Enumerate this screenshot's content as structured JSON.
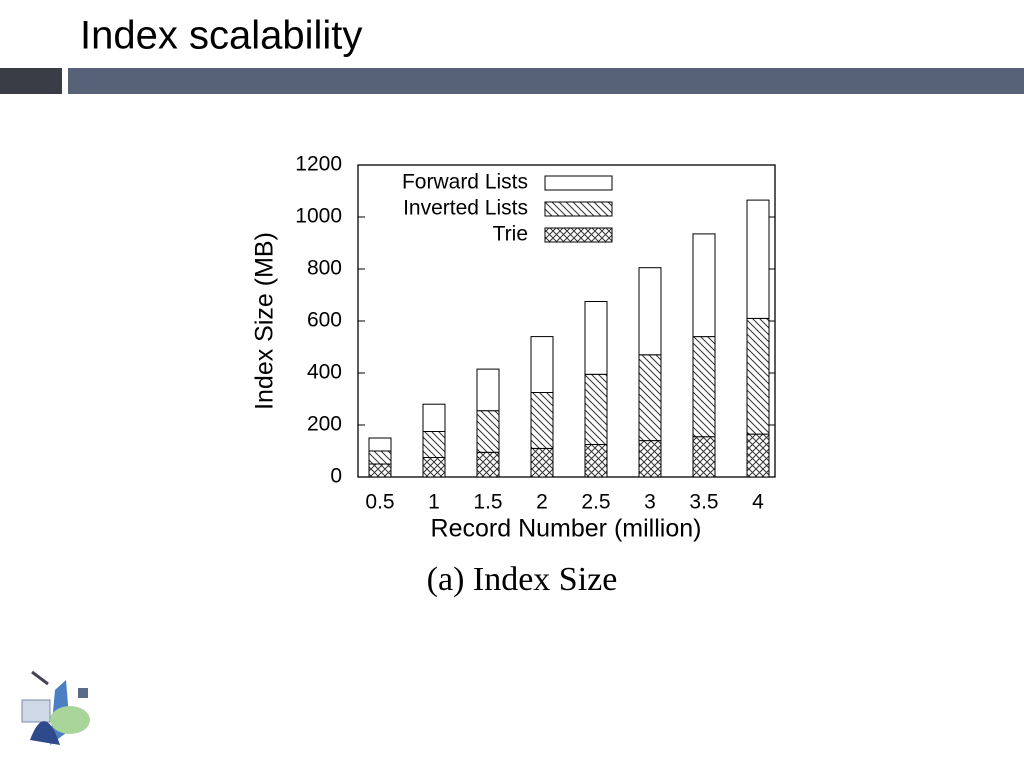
{
  "slide_title": "Index scalability",
  "chart_data": {
    "type": "stacked_bar",
    "caption": "(a) Index Size",
    "x_label": "Record Number (million)",
    "y_label": "Index Size (MB)",
    "categories": [
      "0.5",
      "1",
      "1.5",
      "2",
      "2.5",
      "3",
      "3.5",
      "4"
    ],
    "series": [
      {
        "name": "Trie",
        "color": "#ffffff",
        "hatch": "cross",
        "values": [
          50,
          75,
          95,
          110,
          125,
          140,
          155,
          165
        ]
      },
      {
        "name": "Inverted Lists",
        "color": "#ffffff",
        "hatch": "diagonal",
        "values": [
          50,
          100,
          160,
          215,
          270,
          330,
          385,
          445
        ]
      },
      {
        "name": "Forward Lists",
        "color": "#ffffff",
        "values": [
          50,
          105,
          160,
          215,
          280,
          335,
          395,
          455
        ]
      }
    ],
    "ylim": [
      0,
      1200
    ],
    "yticks": [
      0,
      200,
      400,
      600,
      800,
      1000,
      1200
    ],
    "legend": "top-left"
  }
}
